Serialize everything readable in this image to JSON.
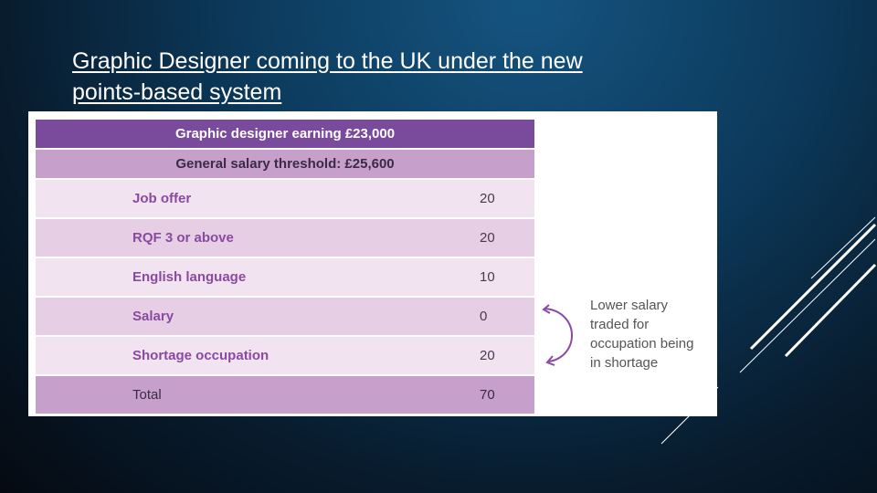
{
  "slide": {
    "title": "Graphic Designer coming to the UK under the new points-based system"
  },
  "table": {
    "header": "Graphic designer earning £23,000",
    "subheader": "General salary threshold: £25,600",
    "rows": [
      {
        "label": "Job offer",
        "value": "20"
      },
      {
        "label": "RQF 3 or above",
        "value": "20"
      },
      {
        "label": "English language",
        "value": "10"
      },
      {
        "label": "Salary",
        "value": "0"
      },
      {
        "label": "Shortage occupation",
        "value": "20"
      }
    ],
    "total": {
      "label": "Total",
      "value": "70"
    }
  },
  "note": {
    "lines": [
      "Lower salary",
      "traded for",
      "occupation being",
      "in shortage"
    ]
  },
  "colors": {
    "header_purple": "#7a4a9c",
    "subheader_lilac": "#c6a0cb",
    "label_purple": "#8a4aa0"
  }
}
